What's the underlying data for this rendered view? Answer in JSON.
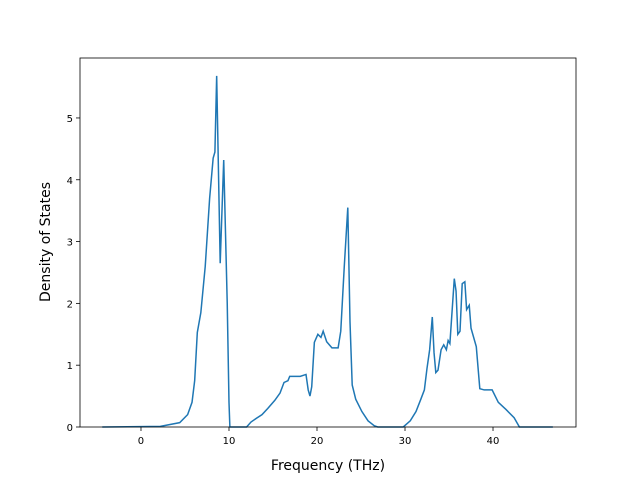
{
  "chart_data": {
    "type": "line",
    "x_label": "Frequency (THz)",
    "y_label": "Density of States",
    "x": [
      -4.4,
      2.2,
      4.4,
      5.3,
      5.8,
      6.1,
      6.4,
      6.8,
      7.3,
      7.8,
      8.2,
      8.4,
      8.6,
      9.0,
      9.4,
      9.8,
      10.0,
      10.1,
      12.0,
      12.5,
      13.1,
      13.75,
      14.4,
      15.2,
      15.8,
      16.25,
      16.7,
      16.9,
      18.1,
      18.75,
      19.0,
      19.2,
      19.4,
      19.7,
      20.1,
      20.45,
      20.7,
      21.1,
      21.7,
      22.4,
      22.7,
      23.1,
      23.5,
      23.75,
      24.0,
      24.4,
      25.1,
      25.8,
      26.5,
      26.9,
      29.8,
      30.6,
      31.25,
      31.8,
      32.2,
      32.5,
      32.8,
      33.1,
      33.3,
      33.5,
      33.75,
      34.1,
      34.4,
      34.7,
      34.9,
      35.1,
      35.6,
      35.8,
      36.0,
      36.25,
      36.5,
      36.8,
      37.0,
      37.3,
      37.5,
      38.1,
      38.5,
      39.0,
      39.9,
      40.6,
      41.5,
      42.4,
      43.0,
      46.8
    ],
    "series": [
      {
        "color": "#1f77b4",
        "values": [
          0,
          0.01,
          0.07,
          0.2,
          0.4,
          0.75,
          1.53,
          1.85,
          2.6,
          3.7,
          4.35,
          4.45,
          5.68,
          2.65,
          4.32,
          2.0,
          0.4,
          0,
          0,
          0.08,
          0.14,
          0.2,
          0.3,
          0.43,
          0.55,
          0.72,
          0.75,
          0.82,
          0.82,
          0.85,
          0.6,
          0.5,
          0.65,
          1.37,
          1.5,
          1.45,
          1.55,
          1.38,
          1.28,
          1.28,
          1.55,
          2.6,
          3.55,
          1.7,
          0.68,
          0.45,
          0.25,
          0.1,
          0.02,
          0,
          0,
          0.1,
          0.25,
          0.45,
          0.6,
          0.95,
          1.25,
          1.78,
          1.2,
          0.88,
          0.92,
          1.25,
          1.33,
          1.25,
          1.4,
          1.35,
          2.4,
          2.2,
          1.5,
          1.55,
          2.32,
          2.35,
          1.9,
          1.97,
          1.6,
          1.3,
          0.62,
          0.6,
          0.6,
          0.4,
          0.28,
          0.15,
          0,
          0
        ]
      }
    ],
    "xlim": [
      -6.93,
      49.43
    ],
    "ylim": [
      0,
      5.97
    ],
    "xticks": [
      0,
      10,
      20,
      30,
      40
    ],
    "yticks": [
      0,
      1,
      2,
      3,
      4,
      5
    ]
  }
}
